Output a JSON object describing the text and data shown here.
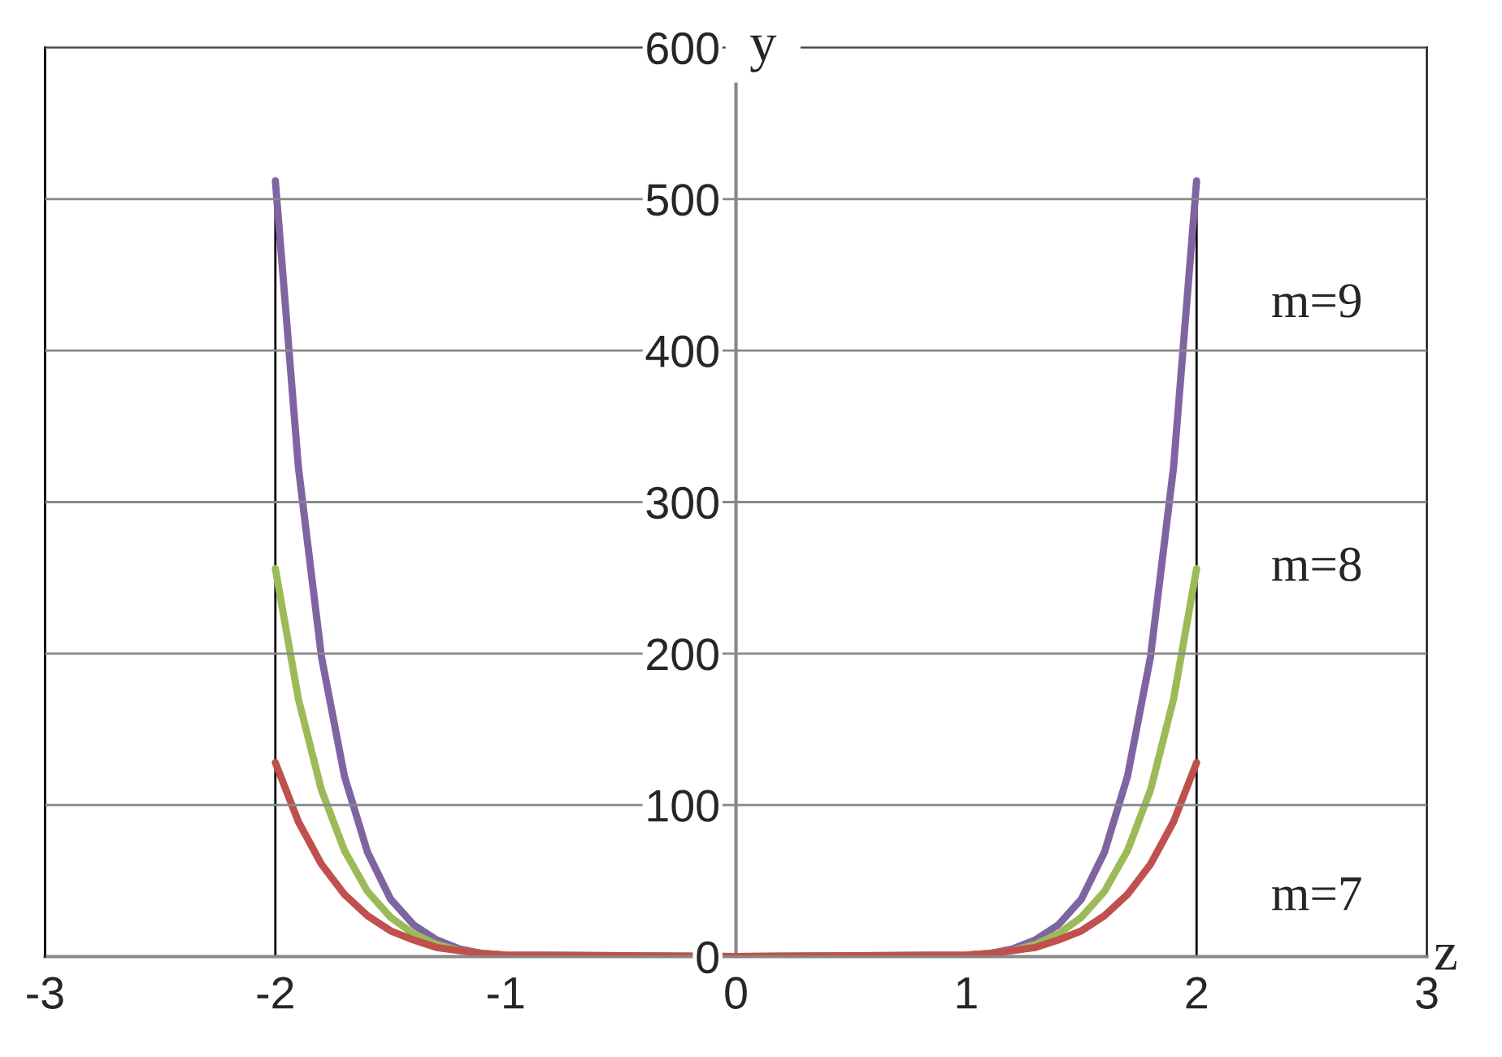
{
  "chart_data": {
    "type": "line",
    "xlabel": "z",
    "ylabel": "y",
    "x": [
      -2,
      -1.9,
      -1.8,
      -1.7,
      -1.6,
      -1.5,
      -1.4,
      -1.3,
      -1.2,
      -1.1,
      -1,
      0,
      1,
      1.1,
      1.2,
      1.3,
      1.4,
      1.5,
      1.6,
      1.7,
      1.8,
      1.9,
      2
    ],
    "series": [
      {
        "name": "m=9",
        "color": "#8064a2",
        "values": [
          512,
          323,
          198,
          119,
          69,
          38,
          21,
          11,
          5,
          2,
          1,
          0,
          1,
          2,
          5,
          11,
          21,
          38,
          69,
          119,
          198,
          323,
          512
        ]
      },
      {
        "name": "m=8",
        "color": "#9bbb59",
        "values": [
          256,
          170,
          110,
          70,
          43,
          26,
          15,
          8,
          4,
          2,
          1,
          0,
          1,
          2,
          4,
          8,
          15,
          26,
          43,
          70,
          110,
          170,
          256
        ]
      },
      {
        "name": "m=7",
        "color": "#c0504d",
        "values": [
          128,
          89,
          61,
          41,
          27,
          17,
          11,
          6,
          4,
          2,
          1,
          0,
          1,
          2,
          4,
          6,
          11,
          17,
          27,
          41,
          61,
          89,
          128
        ]
      }
    ],
    "xlim": [
      -3,
      3
    ],
    "xticks": [
      -3,
      -2,
      -1,
      0,
      1,
      2,
      3
    ],
    "ylim": [
      0,
      600
    ],
    "yticks": [
      0,
      100,
      200,
      300,
      400,
      500,
      600
    ],
    "ref_lines": [
      {
        "axis": "x",
        "value": -2,
        "color": "#000000"
      },
      {
        "axis": "x",
        "value": 2,
        "color": "#000000"
      }
    ],
    "grid": "y",
    "legend": false,
    "marker": "none",
    "line_style": "solid"
  }
}
